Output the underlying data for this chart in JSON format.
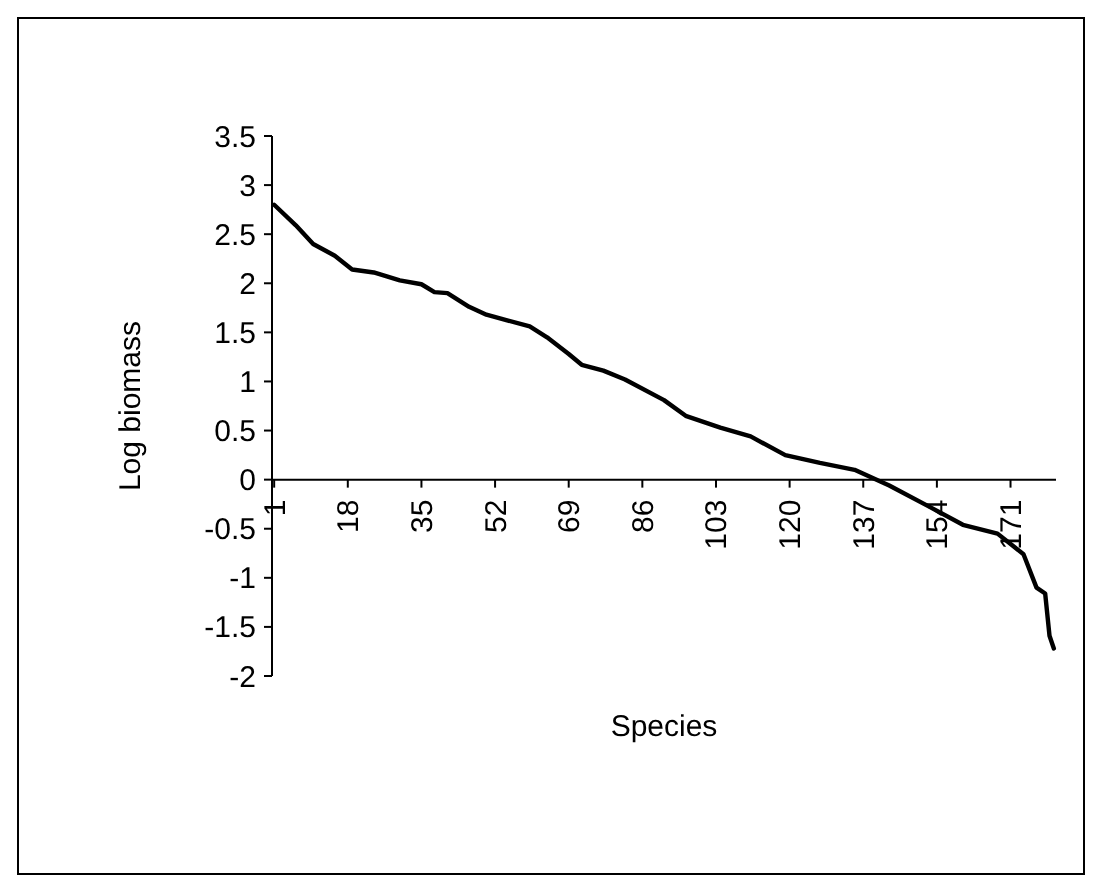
{
  "chart_data": {
    "type": "line",
    "xlabel": "Species",
    "ylabel": "Log biomass",
    "x": [
      1,
      6,
      10,
      15,
      19,
      24,
      30,
      35,
      38,
      41,
      46,
      50,
      55,
      60,
      64,
      69,
      72,
      77,
      82,
      91,
      96,
      104,
      111,
      119,
      127,
      135,
      143,
      152,
      160,
      168,
      174,
      177,
      179,
      180,
      181
    ],
    "series": [
      {
        "color": "#000000",
        "values": [
          2.8,
          2.59,
          2.4,
          2.28,
          2.14,
          2.11,
          2.03,
          1.99,
          1.91,
          1.9,
          1.76,
          1.68,
          1.62,
          1.56,
          1.45,
          1.28,
          1.17,
          1.11,
          1.02,
          0.81,
          0.65,
          0.53,
          0.44,
          0.25,
          0.17,
          0.1,
          -0.06,
          -0.27,
          -0.46,
          -0.55,
          -0.76,
          -1.1,
          -1.16,
          -1.59,
          -1.72
        ]
      }
    ],
    "xlim": [
      0.5,
      181.5
    ],
    "xticks": [
      1,
      18,
      35,
      52,
      69,
      86,
      103,
      120,
      137,
      154,
      171
    ],
    "ylim": [
      -2,
      3.5
    ],
    "yticks": [
      {
        "value": -2,
        "label": "-2"
      },
      {
        "value": -1.5,
        "label": "-1.5"
      },
      {
        "value": -1,
        "label": "-1"
      },
      {
        "value": -0.5,
        "label": "-0.5"
      },
      0,
      0.5,
      1,
      1.5,
      2,
      2.5,
      3,
      3.5
    ],
    "marker": "none",
    "line_style": "solid"
  }
}
